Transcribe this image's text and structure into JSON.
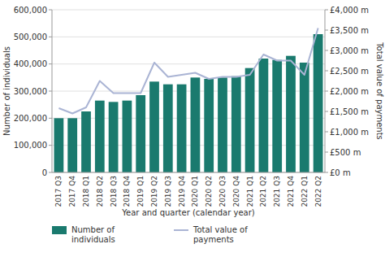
{
  "chart_data": {
    "type": "bar",
    "xlabel": "Year and quarter (calendar year)",
    "ylabel": "Number of individuals",
    "y2label": "Total value of payments",
    "categories": [
      "2017 Q3",
      "2017 Q4",
      "2018 Q1",
      "2018 Q2",
      "2018 Q3",
      "2018 Q4",
      "2019 Q1",
      "2019 Q2",
      "2019 Q3",
      "2019 Q4",
      "2020 Q1",
      "2020 Q2",
      "2020 Q3",
      "2020 Q4",
      "2021 Q1",
      "2021 Q2",
      "2021 Q3",
      "2021 Q4",
      "2022 Q1",
      "2022 Q2"
    ],
    "series": [
      {
        "name": "Number of\nindividuals",
        "type": "bar",
        "color": "#1a7a6e",
        "values": [
          200000,
          200000,
          225000,
          265000,
          260000,
          265000,
          285000,
          335000,
          325000,
          325000,
          350000,
          345000,
          350000,
          355000,
          385000,
          420000,
          415000,
          430000,
          405000,
          510000
        ]
      },
      {
        "name": "Total value of\npayments",
        "type": "line",
        "color": "#aab4d4",
        "axis": "y2",
        "values": [
          1580,
          1450,
          1600,
          2250,
          1950,
          1950,
          1950,
          2700,
          2350,
          2400,
          2450,
          2300,
          2350,
          2350,
          2400,
          2900,
          2750,
          2750,
          2400,
          3550
        ]
      }
    ],
    "ylim": [
      0,
      600000
    ],
    "yticks": [
      0,
      {
        "value": 100000,
        "label": "100,000"
      },
      {
        "value": 200000,
        "label": "200,000"
      },
      {
        "value": 300000,
        "label": "300,000"
      },
      {
        "value": 400000,
        "label": "400,000"
      },
      {
        "value": 500000,
        "label": "500,000"
      },
      {
        "value": 600000,
        "label": "600,000"
      }
    ],
    "y2lim": [
      0,
      4000
    ],
    "y2ticks": [
      {
        "value": 0,
        "label": "£0 m"
      },
      {
        "value": 500,
        "label": "£500 m"
      },
      {
        "value": 1000,
        "label": "£1,000 m"
      },
      {
        "value": 1500,
        "label": "£1,500 m"
      },
      {
        "value": 2000,
        "label": "£2,000 m"
      },
      {
        "value": 2500,
        "label": "£2,500 m"
      },
      {
        "value": 3000,
        "label": "£3,000 m"
      },
      {
        "value": 3500,
        "label": "£3,500 m"
      },
      {
        "value": 4000,
        "label": "£4,000 m"
      }
    ],
    "grid": true,
    "legend": "bottom"
  }
}
